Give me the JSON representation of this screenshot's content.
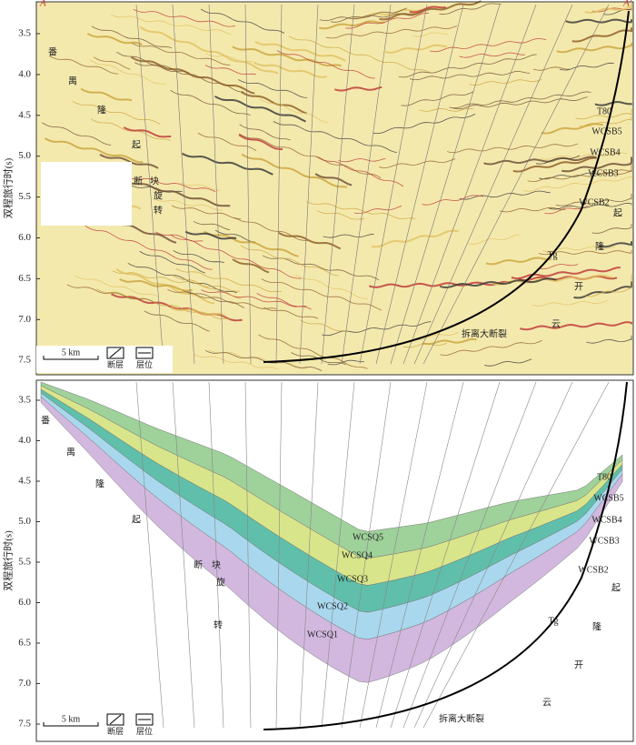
{
  "header": {
    "left_marker": "A",
    "right_marker": "A'"
  },
  "panels": [
    {
      "y_axis_label": "双程旅行时(s)",
      "y_ticks": [
        "3.5",
        "4.0",
        "4.5",
        "5.0",
        "5.5",
        "6.0",
        "6.5",
        "7.0",
        "7.5"
      ],
      "annotations": [
        "番",
        "禺",
        "隆",
        "起",
        "断",
        "块",
        "旋",
        "转",
        "T80",
        "WCSB5",
        "WCSB4",
        "WCSB3",
        "WCSB2",
        "起",
        "隆",
        "Tg",
        "开",
        "云",
        "拆离大断裂"
      ],
      "scale_bar": "5 km",
      "legend": [
        "断层",
        "层位"
      ]
    },
    {
      "y_axis_label": "双程旅行时(s)",
      "y_ticks": [
        "3.5",
        "4.0",
        "4.5",
        "5.0",
        "5.5",
        "6.0",
        "6.5",
        "7.0",
        "7.5"
      ],
      "annotations": [
        "番",
        "禺",
        "隆",
        "起",
        "断",
        "块",
        "旋",
        "转",
        "WCSQ5",
        "WCSQ4",
        "WCSQ3",
        "WCSQ2",
        "WCSQ1",
        "T80",
        "WCSB5",
        "WCSB4",
        "WCSB3",
        "WCSB2",
        "起",
        "隆",
        "Tg",
        "开",
        "云",
        "拆离大断裂"
      ],
      "scale_bar": "5 km",
      "legend": [
        "断层",
        "层位"
      ]
    }
  ]
}
